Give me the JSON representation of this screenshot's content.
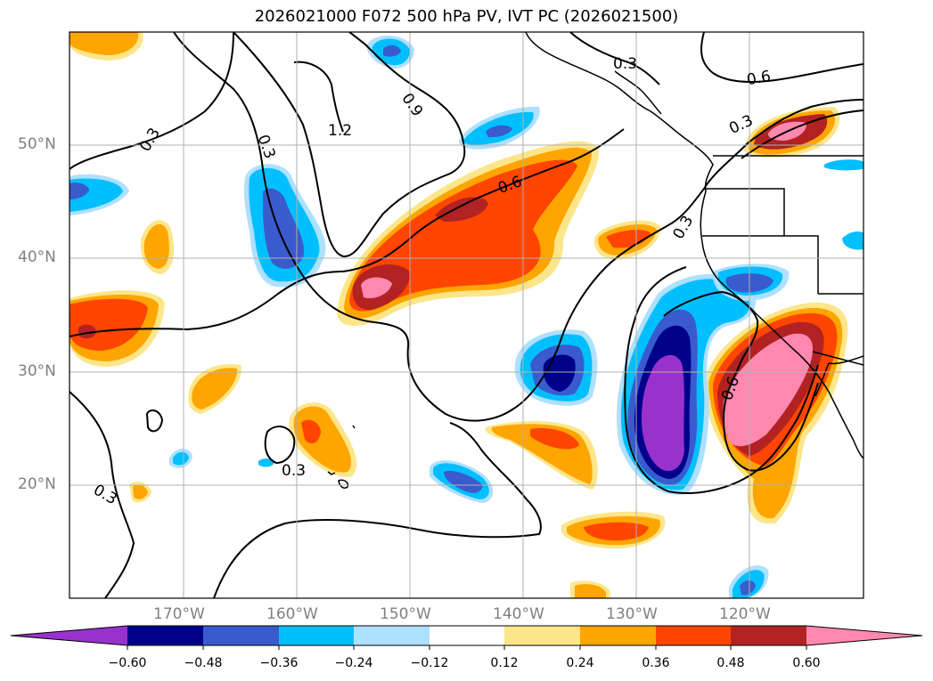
{
  "title": "2026021000 F072 500 hPa PV, IVT PC (2026021500)",
  "axes": {
    "lon_labels": [
      "170°W",
      "160°W",
      "150°W",
      "140°W",
      "130°W",
      "120°W"
    ],
    "lat_labels": [
      "50°N",
      "40°N",
      "30°N",
      "20°N"
    ]
  },
  "contour_labels": [
    "0.3",
    "0.3",
    "0.3",
    "0.3",
    "0.3",
    "0.3",
    "0.6",
    "0.6",
    "0.6",
    "0.9",
    "1.2"
  ],
  "colorbar": {
    "tick_labels": [
      "−0.60",
      "−0.48",
      "−0.36",
      "−0.24",
      "−0.12",
      "0.12",
      "0.24",
      "0.36",
      "0.48",
      "0.60"
    ],
    "colors": [
      "#9932cc",
      "#00008b",
      "#3a5bcd",
      "#00bfff",
      "#aee0ff",
      "#ffffff",
      "#fde68a",
      "#ffa500",
      "#ff4500",
      "#b22222",
      "#ff88b0"
    ]
  },
  "chart_data": {
    "type": "map",
    "title": "2026021000 F072 500 hPa PV, IVT PC (2026021500)",
    "lon_range": [
      -180,
      -110
    ],
    "lat_range": [
      10,
      60
    ],
    "contour_levels": [
      0.3,
      0.6,
      0.9,
      1.2
    ],
    "colorbar_bounds": [
      -0.6,
      -0.48,
      -0.36,
      -0.24,
      -0.12,
      0.12,
      0.24,
      0.36,
      0.48,
      0.6
    ]
  }
}
